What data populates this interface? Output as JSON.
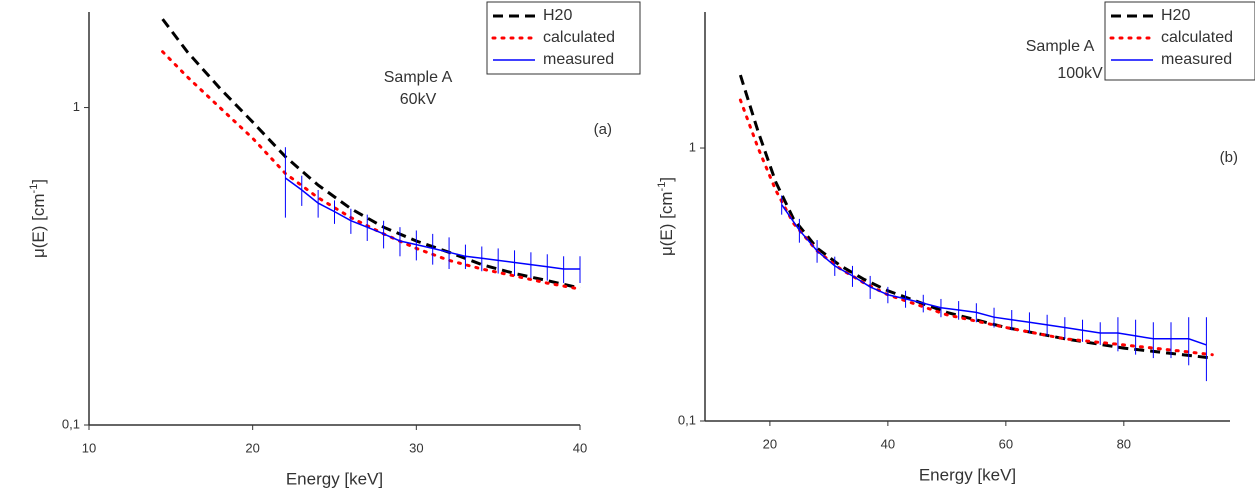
{
  "chart_data": [
    {
      "type": "line",
      "title": "(a)",
      "annotations": [
        "Sample A",
        "60kV"
      ],
      "xlabel": "Energy [keV]",
      "ylabel": {
        "text": "μ(E) [cm",
        "sup": "-1",
        "end": "]"
      },
      "xlim": [
        10,
        40
      ],
      "ylim": [
        0.1,
        2
      ],
      "ylog": true,
      "xticks": [
        10,
        20,
        30,
        40
      ],
      "yticks": [
        {
          "value": 0.1,
          "label": "0,1"
        },
        1
      ],
      "legend": "upper right",
      "series": [
        {
          "name": "H20",
          "color": "#000000",
          "style": "dashed",
          "x": [
            14.5,
            16,
            18,
            20,
            22,
            24,
            26,
            28,
            30,
            32,
            34,
            36,
            38,
            40
          ],
          "values": [
            1.9,
            1.5,
            1.15,
            0.9,
            0.7,
            0.57,
            0.48,
            0.42,
            0.38,
            0.35,
            0.32,
            0.3,
            0.285,
            0.27
          ]
        },
        {
          "name": "calculated",
          "color": "#ff0000",
          "style": "dotted",
          "x": [
            14.5,
            16,
            18,
            20,
            22,
            24,
            26,
            28,
            30,
            32,
            34,
            36,
            38,
            40
          ],
          "values": [
            1.5,
            1.25,
            1.0,
            0.8,
            0.62,
            0.52,
            0.45,
            0.4,
            0.36,
            0.33,
            0.31,
            0.295,
            0.28,
            0.268
          ]
        },
        {
          "name": "measured",
          "color": "#0000ff",
          "style": "solid",
          "x": [
            22,
            23,
            24,
            25,
            26,
            27,
            28,
            29,
            30,
            31,
            32,
            33,
            34,
            35,
            36,
            37,
            38,
            39,
            40
          ],
          "values": [
            0.6,
            0.55,
            0.5,
            0.47,
            0.44,
            0.42,
            0.4,
            0.38,
            0.37,
            0.36,
            0.35,
            0.34,
            0.335,
            0.33,
            0.325,
            0.32,
            0.315,
            0.31,
            0.31
          ],
          "errors": [
            0.15,
            0.06,
            0.05,
            0.04,
            0.04,
            0.04,
            0.04,
            0.04,
            0.04,
            0.04,
            0.04,
            0.03,
            0.03,
            0.03,
            0.03,
            0.03,
            0.03,
            0.03,
            0.03
          ]
        }
      ]
    },
    {
      "type": "line",
      "title": "(b)",
      "annotations": [
        "Sample A",
        "100kV"
      ],
      "xlabel": "Energy [keV]",
      "ylabel": {
        "text": "μ(E) [cm",
        "sup": "-1",
        "end": "]"
      },
      "xlim": [
        9,
        98
      ],
      "ylim": [
        0.1,
        3.15
      ],
      "ylog": true,
      "xticks": [
        20,
        40,
        60,
        80
      ],
      "yticks": [
        {
          "value": 0.1,
          "label": "0,1"
        },
        1
      ],
      "legend": "upper right",
      "series": [
        {
          "name": "H20",
          "color": "#000000",
          "style": "dashed",
          "x": [
            15,
            18,
            21,
            24,
            28,
            32,
            36,
            40,
            50,
            60,
            70,
            80,
            90,
            95
          ],
          "values": [
            1.85,
            1.15,
            0.75,
            0.55,
            0.43,
            0.37,
            0.33,
            0.3,
            0.25,
            0.22,
            0.2,
            0.185,
            0.175,
            0.17
          ]
        },
        {
          "name": "calculated",
          "color": "#ff0000",
          "style": "dotted",
          "x": [
            15,
            18,
            21,
            24,
            28,
            32,
            36,
            40,
            50,
            60,
            70,
            80,
            90,
            95
          ],
          "values": [
            1.5,
            1.0,
            0.7,
            0.53,
            0.42,
            0.36,
            0.32,
            0.29,
            0.245,
            0.22,
            0.2,
            0.19,
            0.18,
            0.175
          ]
        },
        {
          "name": "measured",
          "color": "#0000ff",
          "style": "solid",
          "x": [
            22,
            25,
            28,
            31,
            34,
            37,
            40,
            43,
            46,
            49,
            52,
            55,
            58,
            61,
            64,
            67,
            70,
            73,
            76,
            79,
            82,
            85,
            88,
            91,
            94
          ],
          "values": [
            0.62,
            0.5,
            0.42,
            0.37,
            0.34,
            0.31,
            0.29,
            0.28,
            0.27,
            0.26,
            0.255,
            0.25,
            0.24,
            0.235,
            0.23,
            0.225,
            0.22,
            0.215,
            0.21,
            0.21,
            0.205,
            0.2,
            0.2,
            0.2,
            0.19
          ],
          "errors": [
            0.05,
            0.05,
            0.04,
            0.03,
            0.03,
            0.03,
            0.02,
            0.02,
            0.02,
            0.02,
            0.02,
            0.02,
            0.02,
            0.02,
            0.02,
            0.02,
            0.02,
            0.02,
            0.02,
            0.03,
            0.03,
            0.03,
            0.03,
            0.04,
            0.05
          ]
        }
      ]
    }
  ]
}
